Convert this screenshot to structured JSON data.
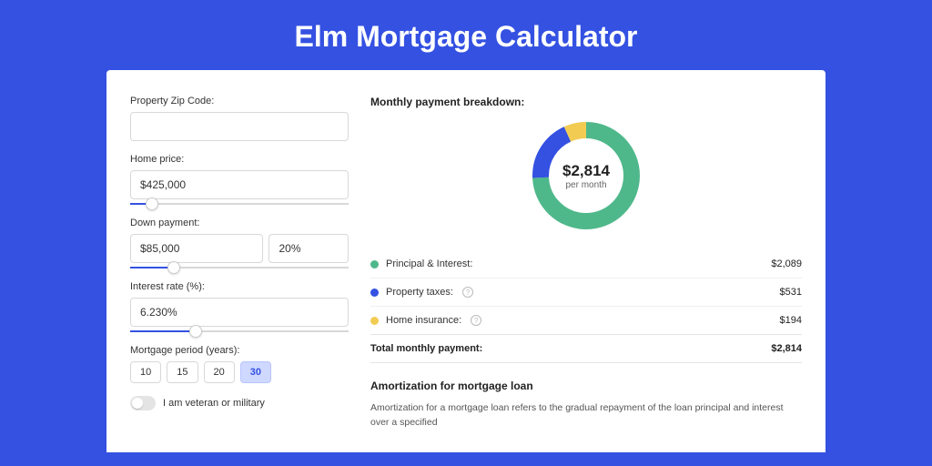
{
  "page": {
    "title": "Elm Mortgage Calculator",
    "bg_color": "#3451e2"
  },
  "form": {
    "zip": {
      "label": "Property Zip Code:",
      "value": ""
    },
    "price": {
      "label": "Home price:",
      "value": "$425,000",
      "slider_pct": 10
    },
    "down": {
      "label": "Down payment:",
      "value": "$85,000",
      "pct": "20%",
      "slider_pct": 20
    },
    "rate": {
      "label": "Interest rate (%):",
      "value": "6.230%",
      "slider_pct": 30
    },
    "period": {
      "label": "Mortgage period (years):",
      "options": [
        "10",
        "15",
        "20",
        "30"
      ],
      "active": "30"
    },
    "veteran": {
      "label": "I am veteran or military",
      "on": false
    }
  },
  "breakdown": {
    "title": "Monthly payment breakdown:",
    "center_amount": "$2,814",
    "center_sub": "per month",
    "donut": {
      "slices": [
        {
          "key": "pi",
          "pct": 74.2,
          "color": "#4fb88b"
        },
        {
          "key": "tax",
          "pct": 18.9,
          "color": "#3451e2"
        },
        {
          "key": "ins",
          "pct": 6.9,
          "color": "#f2cc52"
        }
      ],
      "bg": "#ffffff"
    },
    "rows": [
      {
        "key": "pi",
        "label": "Principal & Interest:",
        "value": "$2,089",
        "color": "#4fb88b",
        "info": false
      },
      {
        "key": "tax",
        "label": "Property taxes:",
        "value": "$531",
        "color": "#3451e2",
        "info": true
      },
      {
        "key": "ins",
        "label": "Home insurance:",
        "value": "$194",
        "color": "#f2cc52",
        "info": true
      }
    ],
    "total": {
      "label": "Total monthly payment:",
      "value": "$2,814"
    }
  },
  "amortization": {
    "title": "Amortization for mortgage loan",
    "text": "Amortization for a mortgage loan refers to the gradual repayment of the loan principal and interest over a specified"
  }
}
